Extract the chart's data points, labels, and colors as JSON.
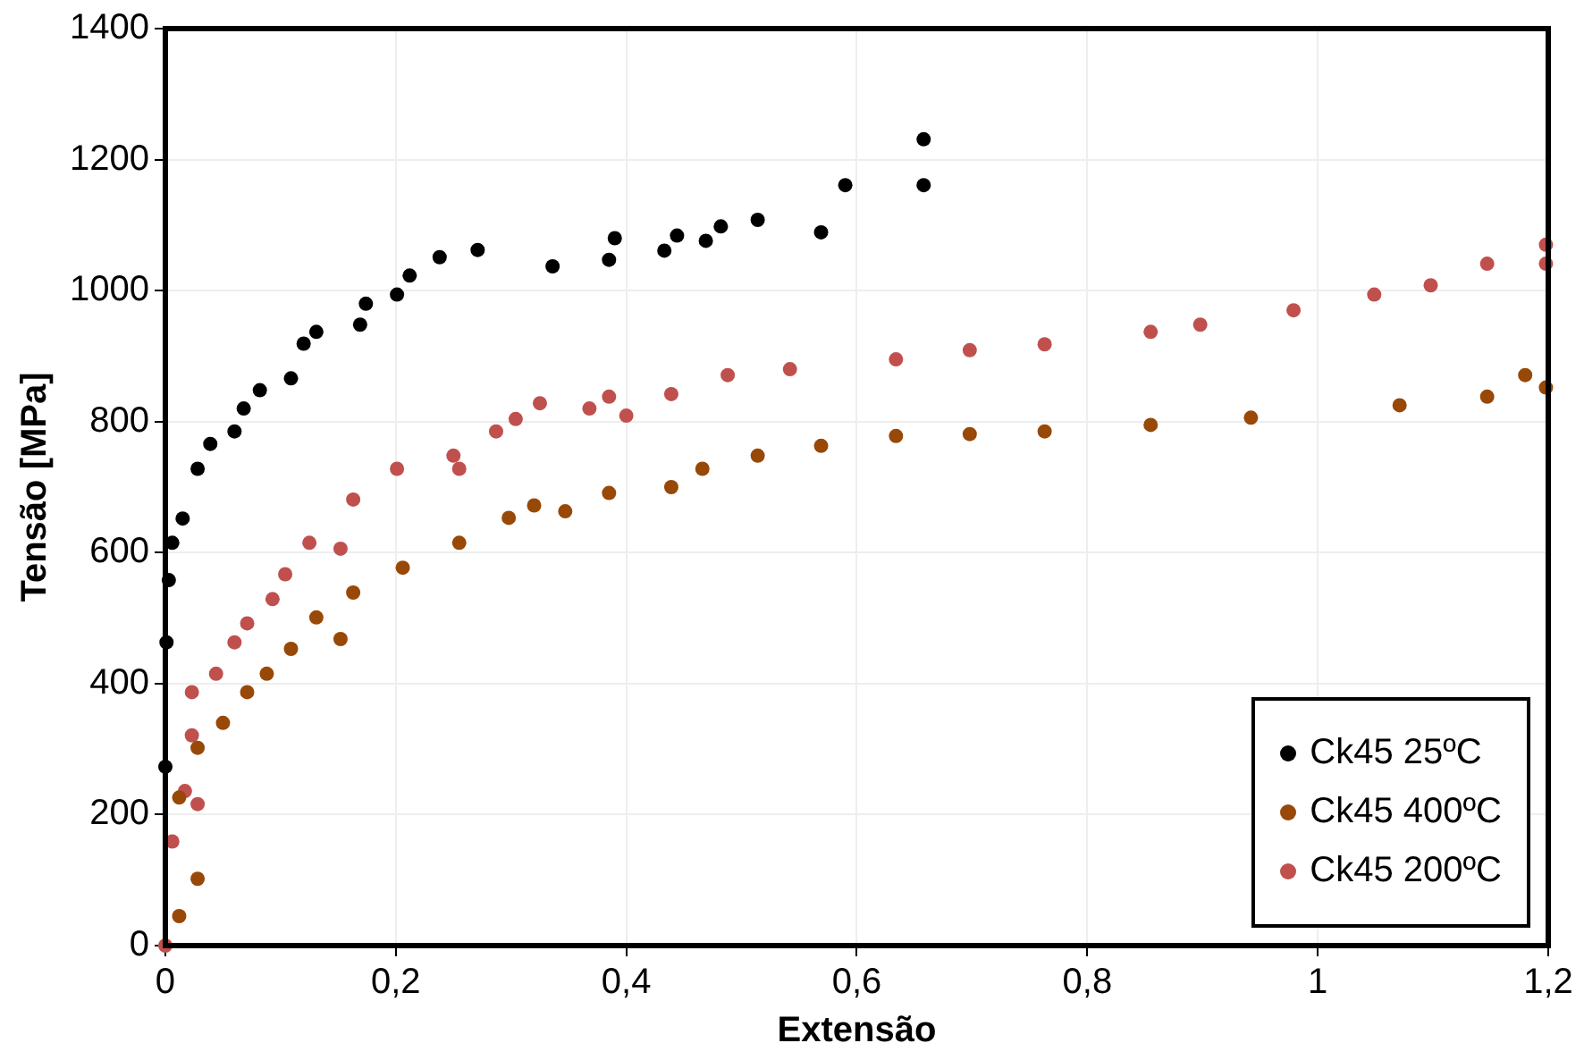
{
  "chart_data": {
    "type": "scatter",
    "xlabel": "Extensão",
    "ylabel": "Tensão [MPa]",
    "xlim": [
      0,
      1.2
    ],
    "ylim": [
      0,
      1400
    ],
    "xticks": [
      0,
      {
        "value": 0.2,
        "label": "0,2"
      },
      {
        "value": 0.4,
        "label": "0,4"
      },
      {
        "value": 0.6,
        "label": "0,6"
      },
      {
        "value": 0.8,
        "label": "0,8"
      },
      1,
      {
        "value": 1.2,
        "label": "1,2"
      }
    ],
    "yticks": [
      0,
      200,
      400,
      600,
      800,
      1000,
      1200,
      1400
    ],
    "grid": true,
    "legend": "bottom right",
    "marker": "circle",
    "series": [
      {
        "name": "Ck45 25ºC",
        "color": "#000000",
        "x": [
          0,
          0.001,
          0.003,
          0.006,
          0.015,
          0.028,
          0.039,
          0.06,
          0.068,
          0.082,
          0.109,
          0.12,
          0.131,
          0.169,
          0.174,
          0.201,
          0.212,
          0.238,
          0.271,
          0.336,
          0.385,
          0.39,
          0.433,
          0.444,
          0.469,
          0.482,
          0.514,
          0.569,
          0.59,
          0.658,
          0.658
        ],
        "values": [
          273,
          463,
          558,
          615,
          652,
          728,
          766,
          785,
          820,
          848,
          866,
          919,
          937,
          948,
          980,
          994,
          1023,
          1051,
          1062,
          1037,
          1047,
          1080,
          1061,
          1084,
          1076,
          1098,
          1108,
          1089,
          1161,
          1161,
          1231
        ]
      },
      {
        "name": "Ck45 400ºC",
        "color": "#984807",
        "x": [
          0.012,
          0.028,
          0.012,
          0.028,
          0.05,
          0.071,
          0.088,
          0.109,
          0.152,
          0.131,
          0.163,
          0.206,
          0.255,
          0.298,
          0.32,
          0.347,
          0.385,
          0.439,
          0.466,
          0.514,
          0.569,
          0.634,
          0.698,
          0.763,
          0.855,
          0.942,
          1.071,
          1.147,
          1.18,
          1.198
        ],
        "values": [
          45,
          102,
          226,
          302,
          340,
          387,
          415,
          453,
          468,
          501,
          539,
          577,
          615,
          653,
          672,
          663,
          691,
          700,
          728,
          748,
          763,
          778,
          781,
          785,
          795,
          806,
          825,
          838,
          871,
          852
        ]
      },
      {
        "name": "Ck45 200ºC",
        "color": "#c0504d",
        "x": [
          0,
          0.006,
          0.017,
          0.028,
          0.023,
          0.023,
          0.044,
          0.06,
          0.071,
          0.093,
          0.104,
          0.125,
          0.152,
          0.163,
          0.201,
          0.25,
          0.255,
          0.287,
          0.304,
          0.325,
          0.368,
          0.4,
          0.385,
          0.439,
          0.488,
          0.542,
          0.634,
          0.698,
          0.763,
          0.855,
          0.898,
          0.979,
          1.049,
          1.098,
          1.147,
          1.198,
          1.198
        ],
        "values": [
          0,
          159,
          236,
          216,
          321,
          387,
          415,
          463,
          492,
          529,
          567,
          615,
          606,
          681,
          728,
          748,
          728,
          785,
          804,
          828,
          820,
          809,
          838,
          842,
          871,
          880,
          895,
          909,
          918,
          937,
          948,
          970,
          994,
          1008,
          1041,
          1070,
          1041
        ]
      }
    ]
  }
}
